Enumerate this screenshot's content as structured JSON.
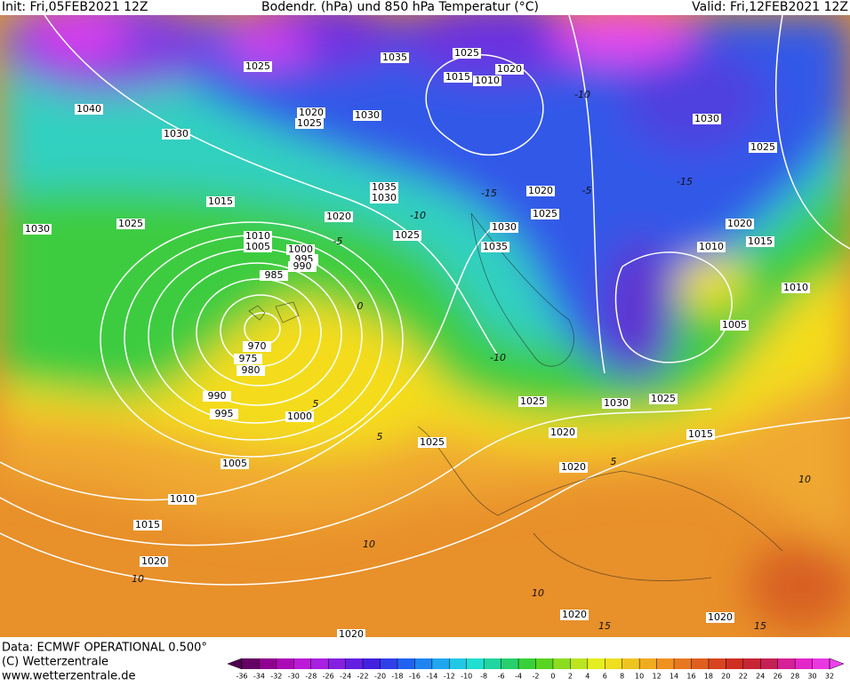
{
  "header": {
    "init": "Init: Fri,05FEB2021 12Z",
    "title": "Bodendr. (hPa) und 850 hPa Temperatur (°C)",
    "valid": "Valid: Fri,12FEB2021 12Z"
  },
  "footer": {
    "data": "Data: ECMWF OPERATIONAL 0.500°",
    "copyright": "(C) Wetterzentrale",
    "url": "www.wetterzentrale.de"
  },
  "isobar_labels": [
    "1025",
    "1035",
    "1025",
    "1020",
    "1015",
    "1010",
    "1040",
    "1030",
    "1020",
    "1025",
    "1030",
    "1030",
    "1025",
    "1015",
    "1035",
    "1030",
    "1020",
    "1025",
    "1020",
    "1025",
    "1030",
    "1025",
    "1030",
    "1020",
    "1015",
    "1010",
    "1005",
    "1000",
    "995",
    "990",
    "985",
    "1035",
    "1010",
    "1010",
    "1005",
    "970",
    "975",
    "980",
    "990",
    "995",
    "1000",
    "1025",
    "1030",
    "1025",
    "1020",
    "1025",
    "1015",
    "1005",
    "1020",
    "1010",
    "1015",
    "1020",
    "1020",
    "1020",
    "1020"
  ],
  "temperature_labels": [
    "-15",
    "-10",
    "-5",
    "0",
    "5",
    "10",
    "-10",
    "-5",
    "5",
    "10",
    "10",
    "15",
    "15",
    "-15",
    "-10",
    "5",
    "10"
  ],
  "colorbar": {
    "ticks": [
      -36,
      -34,
      -32,
      -30,
      -28,
      -26,
      -24,
      -22,
      -20,
      -18,
      -16,
      -14,
      -12,
      -10,
      -8,
      -6,
      -4,
      -2,
      0,
      2,
      4,
      6,
      8,
      10,
      12,
      14,
      16,
      18,
      20,
      22,
      24,
      26,
      28,
      30,
      32
    ]
  }
}
